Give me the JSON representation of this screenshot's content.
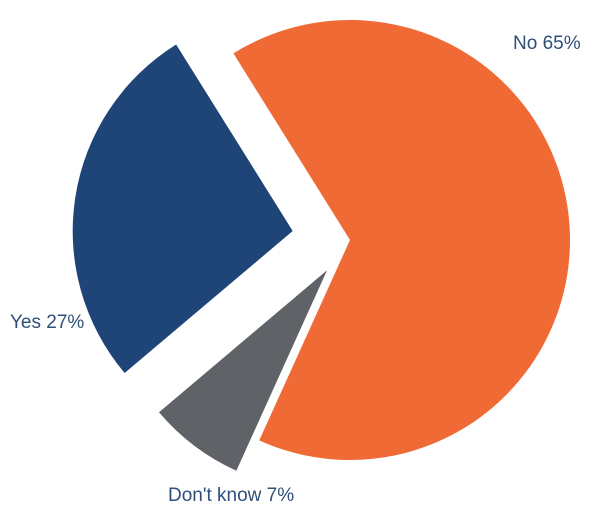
{
  "chart_data": {
    "type": "pie",
    "title": "",
    "slices": [
      {
        "key": "no",
        "label": "No 65%",
        "value": 65,
        "color": "#f06a35"
      },
      {
        "key": "yes",
        "label": "Yes 27%",
        "value": 27,
        "color": "#1f4477"
      },
      {
        "key": "dontknow",
        "label": "Don't know 7%",
        "value": 7,
        "color": "#5f6266"
      }
    ],
    "label_color": "#2f4f7a",
    "legend": "none"
  }
}
